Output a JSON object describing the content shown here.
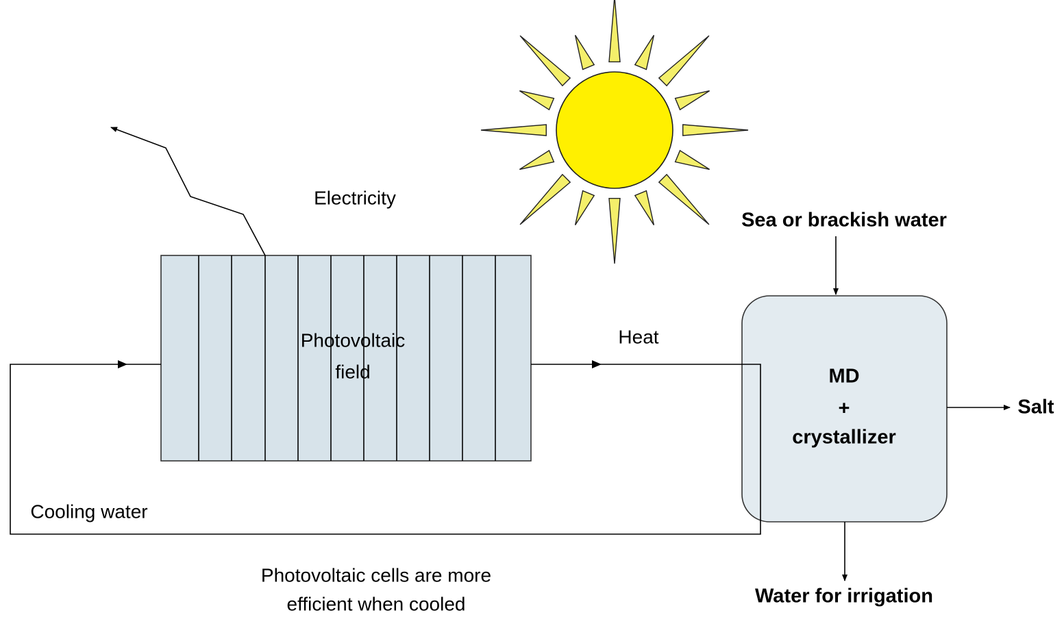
{
  "pv_field": {
    "label": [
      "Photovoltaic",
      "field"
    ]
  },
  "md_unit": {
    "label": [
      "MD",
      "+",
      "crystallizer"
    ]
  },
  "flows": {
    "electricity": "Electricity",
    "heat": "Heat",
    "cooling_water": "Cooling water",
    "feed": "Sea or brackish water",
    "salt": "Salt",
    "irrigation": "Water for irrigation"
  },
  "note": [
    "Photovoltaic cells are more",
    "efficient when cooled"
  ]
}
